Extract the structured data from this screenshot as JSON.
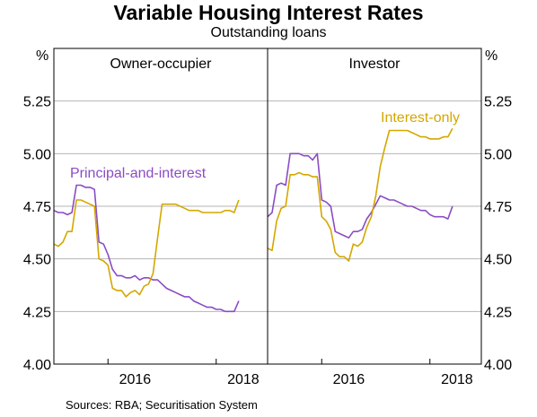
{
  "colors": {
    "purple": "#8B4CC3",
    "gold": "#D4A700",
    "grid": "#b5b5b5",
    "frame": "#000000"
  },
  "chart_data": {
    "type": "line",
    "title": "Variable Housing Interest Rates",
    "subtitle": "Outstanding loans",
    "source": "Sources:   RBA; Securitisation System",
    "unit_left": "%",
    "unit_right": "%",
    "ylim": [
      4.0,
      5.5
    ],
    "yticks": [
      "4.00",
      "4.25",
      "4.50",
      "4.75",
      "5.00",
      "5.25"
    ],
    "xlim": [
      2015.0,
      2018.95
    ],
    "xticks": [
      {
        "label": "2016",
        "value": 2016.0
      },
      {
        "label": "2018",
        "value": 2018.0
      }
    ],
    "panels": [
      {
        "title": "Owner-occupier",
        "annotations": [
          {
            "text": "Principal-and-interest",
            "series": "purple"
          }
        ],
        "series": [
          {
            "name": "Principal-and-interest",
            "color": "purple",
            "x": [
              2015.0,
              2015.083,
              2015.167,
              2015.25,
              2015.333,
              2015.417,
              2015.5,
              2015.583,
              2015.667,
              2015.75,
              2015.833,
              2015.917,
              2016.0,
              2016.083,
              2016.167,
              2016.25,
              2016.333,
              2016.417,
              2016.5,
              2016.583,
              2016.667,
              2016.75,
              2016.833,
              2016.917,
              2017.0,
              2017.083,
              2017.167,
              2017.25,
              2017.333,
              2017.417,
              2017.5,
              2017.583,
              2017.667,
              2017.75,
              2017.833,
              2017.917,
              2018.0,
              2018.083,
              2018.167,
              2018.25,
              2018.333,
              2018.417
            ],
            "values": [
              4.73,
              4.72,
              4.72,
              4.71,
              4.72,
              4.85,
              4.85,
              4.84,
              4.84,
              4.83,
              4.58,
              4.57,
              4.52,
              4.45,
              4.42,
              4.42,
              4.41,
              4.41,
              4.42,
              4.4,
              4.41,
              4.41,
              4.4,
              4.4,
              4.38,
              4.36,
              4.35,
              4.34,
              4.33,
              4.32,
              4.32,
              4.3,
              4.29,
              4.28,
              4.27,
              4.27,
              4.26,
              4.26,
              4.25,
              4.25,
              4.25,
              4.3
            ]
          },
          {
            "name": "Interest-only",
            "color": "gold",
            "x": [
              2015.0,
              2015.083,
              2015.167,
              2015.25,
              2015.333,
              2015.417,
              2015.5,
              2015.583,
              2015.667,
              2015.75,
              2015.833,
              2015.917,
              2016.0,
              2016.083,
              2016.167,
              2016.25,
              2016.333,
              2016.417,
              2016.5,
              2016.583,
              2016.667,
              2016.75,
              2016.833,
              2016.917,
              2017.0,
              2017.083,
              2017.167,
              2017.25,
              2017.333,
              2017.417,
              2017.5,
              2017.583,
              2017.667,
              2017.75,
              2017.833,
              2017.917,
              2018.0,
              2018.083,
              2018.167,
              2018.25,
              2018.333,
              2018.417
            ],
            "values": [
              4.57,
              4.56,
              4.58,
              4.63,
              4.63,
              4.78,
              4.78,
              4.77,
              4.76,
              4.75,
              4.5,
              4.49,
              4.47,
              4.36,
              4.35,
              4.35,
              4.32,
              4.34,
              4.35,
              4.33,
              4.37,
              4.38,
              4.43,
              4.6,
              4.76,
              4.76,
              4.76,
              4.76,
              4.75,
              4.74,
              4.73,
              4.73,
              4.73,
              4.72,
              4.72,
              4.72,
              4.72,
              4.72,
              4.73,
              4.73,
              4.72,
              4.78
            ]
          }
        ]
      },
      {
        "title": "Investor",
        "annotations": [
          {
            "text": "Interest-only",
            "series": "gold"
          }
        ],
        "series": [
          {
            "name": "Principal-and-interest",
            "color": "purple",
            "x": [
              2015.0,
              2015.083,
              2015.167,
              2015.25,
              2015.333,
              2015.417,
              2015.5,
              2015.583,
              2015.667,
              2015.75,
              2015.833,
              2015.917,
              2016.0,
              2016.083,
              2016.167,
              2016.25,
              2016.333,
              2016.417,
              2016.5,
              2016.583,
              2016.667,
              2016.75,
              2016.833,
              2016.917,
              2017.0,
              2017.083,
              2017.167,
              2017.25,
              2017.333,
              2017.417,
              2017.5,
              2017.583,
              2017.667,
              2017.75,
              2017.833,
              2017.917,
              2018.0,
              2018.083,
              2018.167,
              2018.25,
              2018.333,
              2018.417
            ],
            "values": [
              4.7,
              4.72,
              4.85,
              4.86,
              4.85,
              5.0,
              5.0,
              5.0,
              4.99,
              4.99,
              4.97,
              5.0,
              4.78,
              4.77,
              4.75,
              4.63,
              4.62,
              4.61,
              4.6,
              4.63,
              4.63,
              4.64,
              4.69,
              4.72,
              4.76,
              4.8,
              4.79,
              4.78,
              4.78,
              4.77,
              4.76,
              4.75,
              4.75,
              4.74,
              4.73,
              4.73,
              4.71,
              4.7,
              4.7,
              4.7,
              4.69,
              4.75
            ]
          },
          {
            "name": "Interest-only",
            "color": "gold",
            "x": [
              2015.0,
              2015.083,
              2015.167,
              2015.25,
              2015.333,
              2015.417,
              2015.5,
              2015.583,
              2015.667,
              2015.75,
              2015.833,
              2015.917,
              2016.0,
              2016.083,
              2016.167,
              2016.25,
              2016.333,
              2016.417,
              2016.5,
              2016.583,
              2016.667,
              2016.75,
              2016.833,
              2016.917,
              2017.0,
              2017.083,
              2017.167,
              2017.25,
              2017.333,
              2017.417,
              2017.5,
              2017.583,
              2017.667,
              2017.75,
              2017.833,
              2017.917,
              2018.0,
              2018.083,
              2018.167,
              2018.25,
              2018.333,
              2018.417
            ],
            "values": [
              4.55,
              4.54,
              4.68,
              4.74,
              4.75,
              4.9,
              4.9,
              4.91,
              4.9,
              4.9,
              4.89,
              4.89,
              4.7,
              4.68,
              4.64,
              4.53,
              4.51,
              4.51,
              4.49,
              4.57,
              4.56,
              4.58,
              4.65,
              4.7,
              4.8,
              4.94,
              5.03,
              5.11,
              5.11,
              5.11,
              5.11,
              5.11,
              5.1,
              5.09,
              5.08,
              5.08,
              5.07,
              5.07,
              5.07,
              5.08,
              5.08,
              5.12
            ]
          }
        ]
      }
    ]
  }
}
